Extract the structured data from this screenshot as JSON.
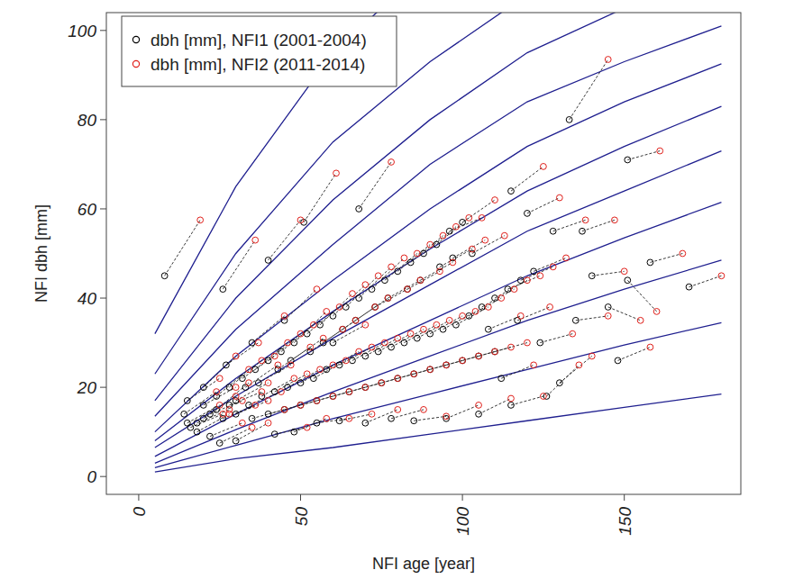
{
  "chart_data": {
    "type": "scatter",
    "x_label": "NFI age [year]",
    "y_label": "NFI dbh [mm]",
    "xlim": [
      -10,
      186
    ],
    "ylim": [
      -4,
      104
    ],
    "xticks": [
      0,
      50,
      100,
      150
    ],
    "yticks": [
      0,
      20,
      40,
      60,
      80,
      100
    ],
    "grid": false,
    "legend": "top-left",
    "marker": "circle",
    "series": [
      {
        "name": "dbh [mm], NFI1 (2001-2004)",
        "color": "#000000",
        "x": [
          8,
          133,
          151,
          170,
          158,
          151,
          26,
          40,
          51,
          68,
          115,
          120,
          128,
          137,
          140,
          145,
          148,
          130,
          126,
          115,
          105,
          95,
          85,
          78,
          70,
          62,
          55,
          48,
          42,
          30,
          25,
          22,
          18,
          15,
          14,
          20,
          24,
          28,
          32,
          36,
          40,
          44,
          48,
          52,
          56,
          60,
          64,
          68,
          72,
          76,
          80,
          84,
          88,
          92,
          96,
          100,
          30,
          34,
          38,
          42,
          46,
          50,
          54,
          58,
          62,
          66,
          70,
          74,
          78,
          82,
          86,
          90,
          94,
          98,
          102,
          106,
          110,
          114,
          118,
          122,
          26,
          30,
          35,
          40,
          45,
          50,
          55,
          60,
          65,
          70,
          75,
          80,
          85,
          90,
          95,
          100,
          105,
          110,
          18,
          22,
          20,
          16,
          24,
          28,
          33,
          37,
          43,
          47,
          53,
          57,
          63,
          67,
          73,
          77,
          83,
          87,
          93,
          97,
          103,
          108,
          112,
          117,
          124,
          135,
          60,
          45,
          35,
          20,
          15,
          27
        ],
        "values": [
          45,
          80,
          71,
          42.5,
          48,
          44,
          42,
          48.5,
          57,
          60,
          64,
          59,
          55,
          55,
          45,
          38,
          26,
          21,
          18,
          16,
          14,
          13,
          12.5,
          13,
          12,
          12.5,
          12,
          10,
          9.5,
          8,
          7.5,
          9,
          10,
          12,
          14,
          16,
          18,
          20,
          22,
          24,
          26,
          28,
          30,
          32,
          34,
          36,
          38,
          40,
          42,
          44,
          46,
          48,
          50,
          52,
          55,
          57,
          17,
          16,
          18,
          19,
          20,
          21,
          22,
          24,
          25,
          26,
          27,
          28,
          29,
          30,
          31,
          32,
          33,
          34,
          36,
          38,
          40,
          42,
          44,
          46,
          13,
          14,
          13,
          14,
          15,
          16,
          17,
          18,
          19,
          20,
          21,
          22,
          23,
          24,
          25,
          26,
          27,
          28,
          12,
          14,
          13,
          11,
          15,
          16,
          20,
          21,
          24,
          26,
          28,
          30,
          33,
          35,
          38,
          40,
          42,
          44,
          47,
          49,
          50,
          33,
          22,
          35,
          30,
          35,
          30,
          35,
          30,
          20,
          17,
          25
        ]
      },
      {
        "name": "dbh [mm], NFI2 (2011-2014)",
        "color": "#e0201b",
        "x": [
          19,
          145,
          161,
          180,
          168,
          160,
          36,
          50,
          61,
          78,
          125,
          130,
          138,
          147,
          150,
          155,
          158,
          140,
          136,
          125,
          115,
          105,
          95,
          88,
          80,
          72,
          65,
          58,
          52,
          40,
          35,
          32,
          28,
          25,
          24,
          30,
          34,
          38,
          42,
          46,
          50,
          54,
          58,
          62,
          66,
          70,
          74,
          78,
          82,
          86,
          90,
          94,
          98,
          102,
          106,
          110,
          40,
          44,
          48,
          52,
          56,
          60,
          64,
          68,
          72,
          76,
          80,
          84,
          88,
          92,
          96,
          100,
          104,
          108,
          112,
          116,
          120,
          124,
          128,
          132,
          36,
          40,
          45,
          50,
          55,
          60,
          65,
          70,
          75,
          80,
          85,
          90,
          95,
          100,
          105,
          110,
          115,
          120,
          28,
          32,
          30,
          26,
          34,
          38,
          43,
          47,
          53,
          57,
          63,
          67,
          73,
          77,
          83,
          87,
          93,
          97,
          103,
          107,
          113,
          118,
          122,
          127,
          134,
          145,
          70,
          55,
          45,
          30,
          25,
          37
        ],
        "values": [
          57.5,
          93.5,
          73,
          45,
          50,
          37,
          53,
          57.5,
          68,
          70.5,
          69.5,
          62.5,
          57.5,
          57.5,
          46,
          35,
          29,
          27,
          25,
          18,
          17.5,
          16,
          13.5,
          15,
          15,
          14,
          13,
          13,
          11,
          12,
          11,
          12,
          14,
          16,
          19,
          20,
          24,
          26,
          27,
          30,
          32,
          34,
          37,
          38,
          41,
          43,
          45,
          47,
          49,
          50,
          52,
          54,
          56,
          58,
          58,
          62,
          21,
          19,
          22,
          23,
          24,
          25,
          26,
          28,
          29,
          30,
          31,
          32,
          33,
          34,
          35,
          36,
          37,
          38,
          40,
          42,
          44,
          45,
          47,
          49,
          16,
          17,
          15,
          16,
          17,
          18,
          19,
          20,
          21,
          22,
          23,
          24,
          25,
          26,
          27,
          28,
          29,
          30,
          15,
          17,
          18,
          14,
          21,
          19,
          25,
          25,
          29,
          31,
          33,
          35,
          38,
          40,
          42,
          44,
          46,
          48,
          51,
          53,
          54,
          36,
          25,
          38,
          32,
          36,
          34,
          42,
          36,
          27,
          22,
          30
        ]
      }
    ],
    "reference_curves": [
      {
        "color": "#1f1f8f",
        "x": [
          5,
          30,
          60,
          90,
          120,
          150,
          180
        ],
        "values": [
          1,
          4,
          6.5,
          9.5,
          12.5,
          15.5,
          18.5
        ]
      },
      {
        "color": "#1f1f8f",
        "x": [
          5,
          30,
          60,
          90,
          120,
          150,
          180
        ],
        "values": [
          2,
          7,
          13,
          18.5,
          24,
          29.5,
          34.5
        ]
      },
      {
        "color": "#1f1f8f",
        "x": [
          5,
          30,
          60,
          90,
          120,
          150,
          180
        ],
        "values": [
          3,
          10.5,
          19,
          27,
          35,
          42,
          48.5
        ]
      },
      {
        "color": "#1f1f8f",
        "x": [
          5,
          30,
          60,
          90,
          120,
          150,
          180
        ],
        "values": [
          4.5,
          14,
          25,
          35,
          45,
          53.5,
          61.5
        ]
      },
      {
        "color": "#1f1f8f",
        "x": [
          5,
          30,
          60,
          90,
          120,
          150,
          180
        ],
        "values": [
          6.5,
          18,
          31,
          43,
          55,
          64,
          73
        ]
      },
      {
        "color": "#1f1f8f",
        "x": [
          5,
          30,
          60,
          90,
          120,
          150,
          180
        ],
        "values": [
          8,
          22,
          37,
          51,
          64,
          74,
          83
        ]
      },
      {
        "color": "#1f1f8f",
        "x": [
          5,
          30,
          60,
          90,
          120,
          150,
          180
        ],
        "values": [
          10,
          27,
          44,
          60,
          74,
          84,
          92.5
        ]
      },
      {
        "color": "#1f1f8f",
        "x": [
          5,
          30,
          60,
          90,
          120,
          150,
          180
        ],
        "values": [
          13.5,
          33,
          52,
          70,
          84,
          93,
          101
        ]
      },
      {
        "color": "#1f1f8f",
        "x": [
          5,
          30,
          60,
          90,
          120,
          150,
          180
        ],
        "values": [
          17,
          40,
          62,
          80,
          95,
          105,
          112
        ]
      },
      {
        "color": "#1f1f8f",
        "x": [
          5,
          30,
          60,
          90,
          120,
          150,
          180
        ],
        "values": [
          23,
          50,
          75,
          93,
          108,
          118,
          128
        ]
      },
      {
        "color": "#1f1f8f",
        "x": [
          5,
          30,
          60,
          90,
          120,
          150,
          180
        ],
        "values": [
          32,
          65,
          95,
          115,
          130,
          140,
          148
        ]
      }
    ]
  }
}
